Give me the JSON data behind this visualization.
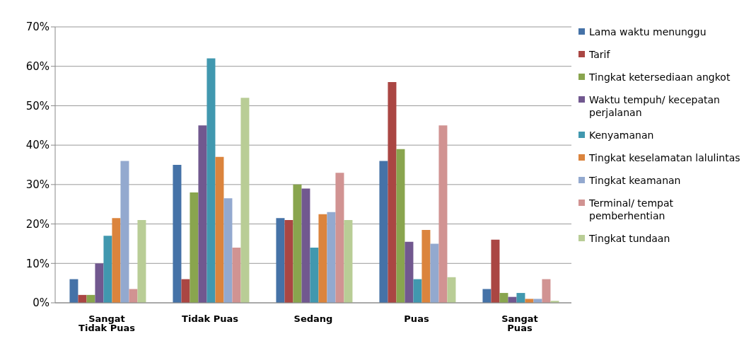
{
  "chart_data": {
    "type": "bar",
    "categories": [
      "Sangat Tidak Puas",
      "Tidak Puas",
      "Sedang",
      "Puas",
      "Sangat Puas"
    ],
    "series": [
      {
        "name": "Lama waktu menunggu",
        "color": "#4572a7",
        "values": [
          6,
          35,
          21.5,
          36,
          3.5
        ]
      },
      {
        "name": "Tarif",
        "color": "#aa4643",
        "values": [
          2,
          6,
          21,
          56,
          16
        ]
      },
      {
        "name": "Tingkat ketersediaan angkot",
        "color": "#89a54e",
        "values": [
          2,
          28,
          30,
          39,
          2.5
        ]
      },
      {
        "name": "Waktu tempuh/ kecepatan perjalanan",
        "color": "#71588f",
        "values": [
          10,
          45,
          29,
          15.5,
          1.5
        ]
      },
      {
        "name": "Kenyamanan",
        "color": "#4198af",
        "values": [
          17,
          62,
          14,
          6,
          2.5
        ]
      },
      {
        "name": "Tingkat keselamatan lalulintas",
        "color": "#db843d",
        "values": [
          21.5,
          37,
          22.5,
          18.5,
          1
        ]
      },
      {
        "name": "Tingkat keamanan",
        "color": "#93a9cf",
        "values": [
          36,
          26.5,
          23,
          15,
          1
        ]
      },
      {
        "name": "Terminal/ tempat pemberhentian",
        "color": "#d19392",
        "values": [
          3.5,
          14,
          33,
          45,
          6
        ]
      },
      {
        "name": "Tingkat tundaan",
        "color": "#b9cd96",
        "values": [
          21,
          52,
          21,
          6.5,
          0.5
        ]
      }
    ],
    "ylim": [
      0,
      70
    ],
    "yticks": [
      {
        "value": 0,
        "label": "0%"
      },
      {
        "value": 10,
        "label": "10%"
      },
      {
        "value": 20,
        "label": "20%"
      },
      {
        "value": 30,
        "label": "30%"
      },
      {
        "value": 40,
        "label": "40%"
      },
      {
        "value": 50,
        "label": "50%"
      },
      {
        "value": 60,
        "label": "60%"
      },
      {
        "value": 70,
        "label": "70%"
      }
    ],
    "grid": "y",
    "legend": "right"
  }
}
